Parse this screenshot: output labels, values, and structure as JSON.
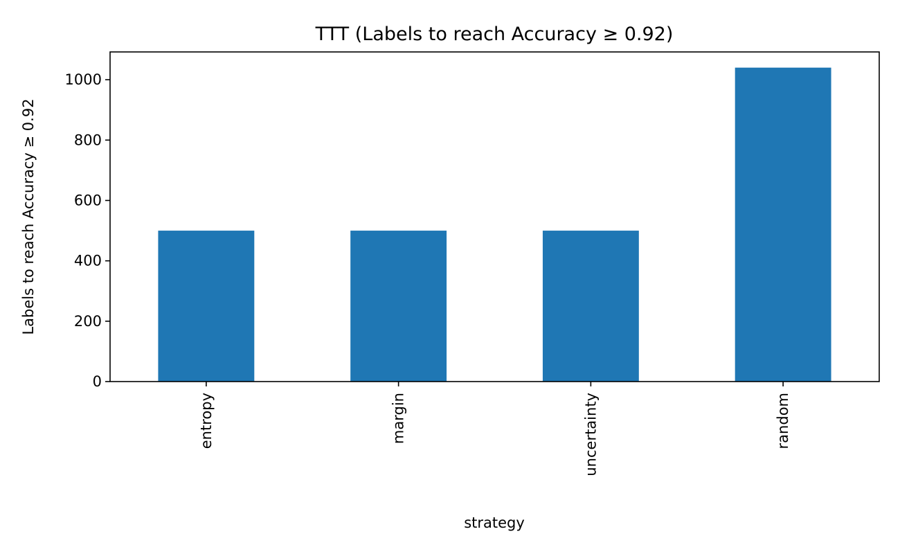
{
  "chart_data": {
    "type": "bar",
    "title": "TTT (Labels to reach Accuracy ≥ 0.92)",
    "xlabel": "strategy",
    "ylabel": "Labels to reach Accuracy ≥ 0.92",
    "categories": [
      "entropy",
      "margin",
      "uncertainty",
      "random"
    ],
    "values": [
      500,
      500,
      500,
      1040
    ],
    "ylim": [
      0,
      1092
    ],
    "yticks": [
      0,
      200,
      400,
      600,
      800,
      1000
    ],
    "grid": false,
    "bar_color": "#1f77b4"
  }
}
